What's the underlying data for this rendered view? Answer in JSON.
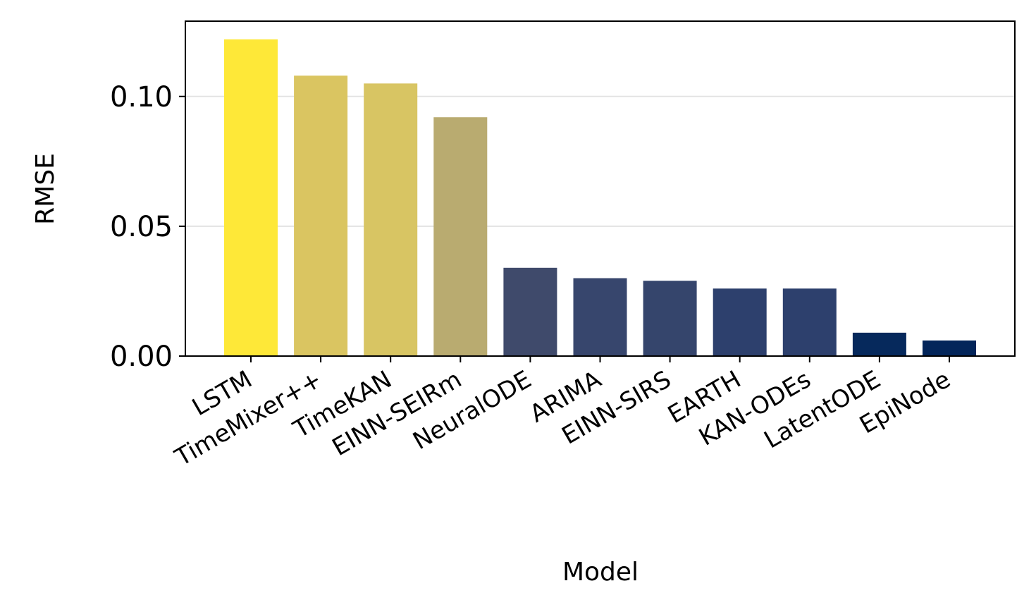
{
  "chart_data": {
    "type": "bar",
    "x_label": "Model",
    "y_label": "RMSE",
    "categories": [
      "LSTM",
      "TimeMixer++",
      "TimeKAN",
      "EINN-SEIRm",
      "NeuralODE",
      "ARIMA",
      "EINN-SIRS",
      "EARTH",
      "KAN-ODEs",
      "LatentODE",
      "EpiNode"
    ],
    "values": [
      0.122,
      0.108,
      0.105,
      0.092,
      0.034,
      0.03,
      0.029,
      0.026,
      0.026,
      0.009,
      0.006
    ],
    "colors": [
      "#fee838",
      "#dac561",
      "#d8c563",
      "#b9ab70",
      "#3f4a6b",
      "#37466d",
      "#35456c",
      "#2d406d",
      "#2d406d",
      "#06295c",
      "#03255a"
    ],
    "ylim": [
      0,
      0.129
    ],
    "yticks": [
      {
        "value": 0,
        "label": "0.00"
      },
      0.05,
      {
        "value": 0.1,
        "label": "0.10"
      }
    ],
    "grid": true
  }
}
